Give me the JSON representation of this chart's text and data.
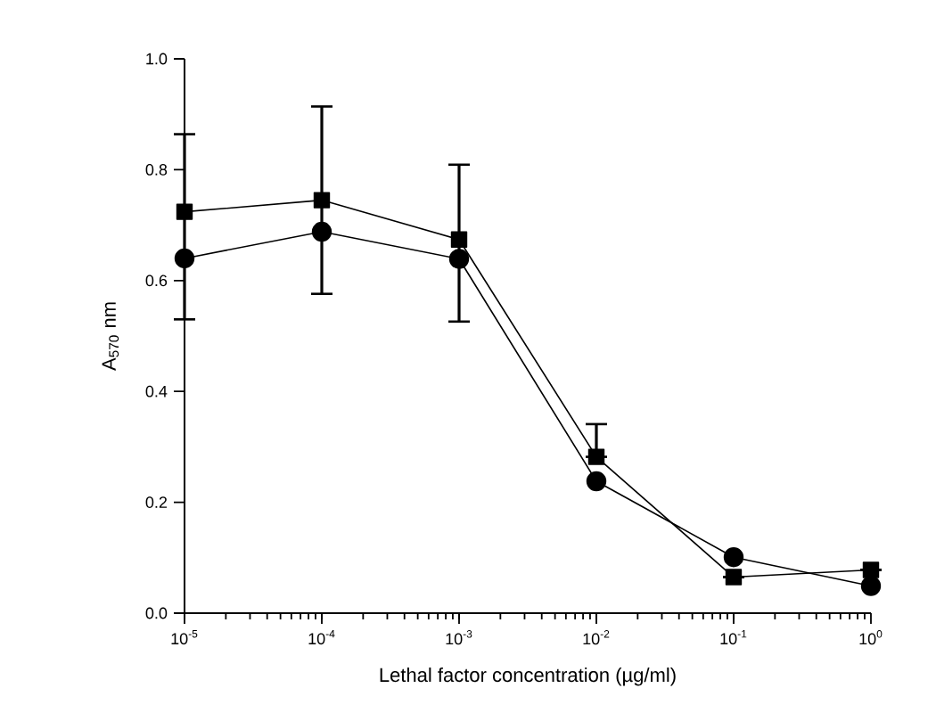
{
  "chart_data": {
    "type": "line",
    "xlabel": "Lethal factor concentration (µg/ml)",
    "ylabel": "A$_{570}$ nm",
    "x": [
      1e-05,
      0.0001,
      0.001,
      0.01,
      0.1,
      1
    ],
    "log": "x",
    "xlim": [
      1e-05,
      1
    ],
    "xticks": [
      {
        "value": 1e-05,
        "label": "10$^{-5}$"
      },
      {
        "value": 0.0001,
        "label": "10$^{-4}$"
      },
      {
        "value": 0.001,
        "label": "10$^{-3}$"
      },
      {
        "value": 0.01,
        "label": "10$^{-2}$"
      },
      {
        "value": 0.1,
        "label": "10$^{-1}$"
      },
      {
        "value": 1,
        "label": "10$^{0}$"
      }
    ],
    "ylim": [
      0,
      1
    ],
    "yticks": [
      {
        "value": 0,
        "label": "0.0"
      },
      {
        "value": 0.2,
        "label": "0.2"
      },
      {
        "value": 0.4,
        "label": "0.4"
      },
      {
        "value": 0.6,
        "label": "0.6"
      },
      {
        "value": 0.8,
        "label": "0.8"
      },
      {
        "value": 1,
        "label": "1.0"
      }
    ],
    "grid": false,
    "series": [
      {
        "color": "#000000",
        "marker": "square",
        "values": [
          0.724,
          0.745,
          0.674,
          0.282,
          0.065,
          0.078
        ],
        "errors": [
          [
            0.53,
            0.864
          ],
          [
            0.576,
            0.914
          ],
          [
            0.526,
            0.809
          ],
          [
            0.282,
            0.341
          ],
          null,
          null
        ]
      },
      {
        "color": "#000000",
        "marker": "circle",
        "values": [
          0.64,
          0.688,
          0.639,
          0.238,
          0.101,
          0.049
        ]
      }
    ]
  }
}
